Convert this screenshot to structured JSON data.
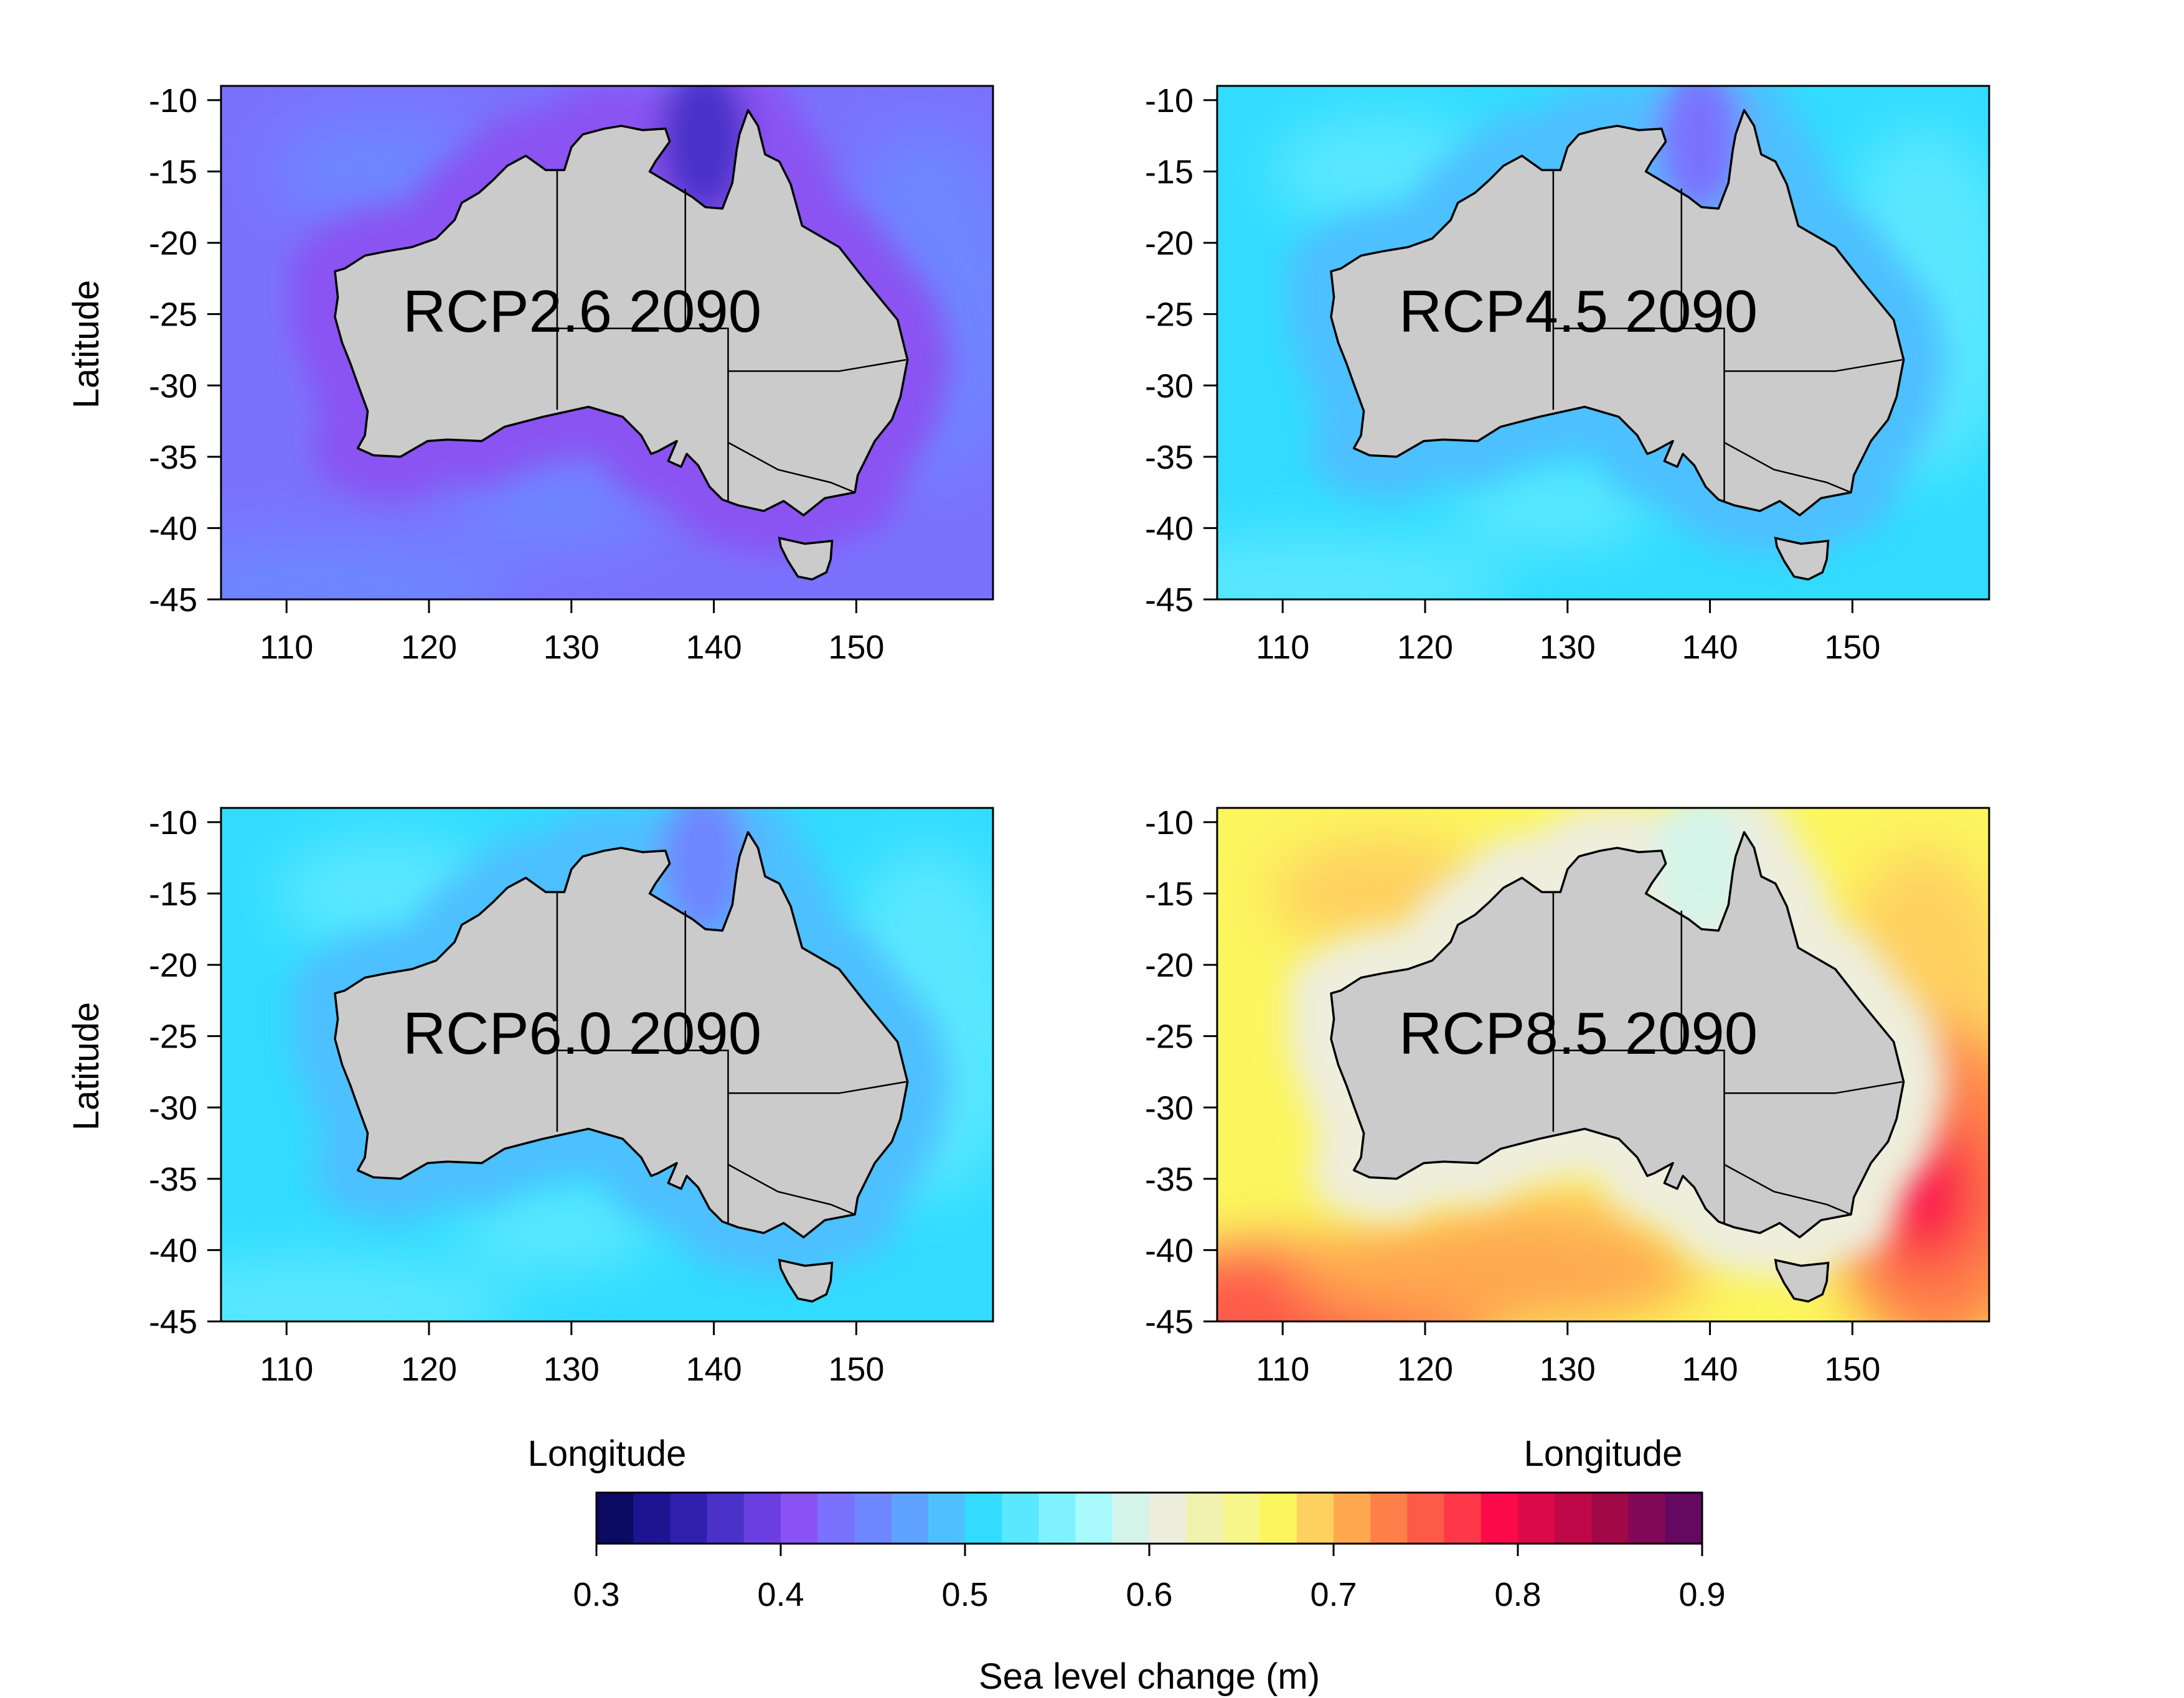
{
  "figure": {
    "colorbar": {
      "label": "Sea level change (m)",
      "min": 0.3,
      "max": 0.9,
      "tick_labels": [
        "0.3",
        "0.4",
        "0.5",
        "0.6",
        "0.7",
        "0.8",
        "0.9"
      ],
      "colors": [
        "#0a0a62",
        "#1c1490",
        "#3020b0",
        "#4a32c8",
        "#6a3ee0",
        "#8a52f2",
        "#7a72ff",
        "#6e86ff",
        "#60a2ff",
        "#4ec0ff",
        "#32dcff",
        "#5ae8ff",
        "#80f2ff",
        "#a8fafc",
        "#d4f4ea",
        "#eeeedc",
        "#f2f2b0",
        "#f6f68a",
        "#fcf65e",
        "#fed060",
        "#fea850",
        "#fe8048",
        "#fe5a48",
        "#fe3848",
        "#fa0a48",
        "#dc0a48",
        "#be0848",
        "#a00848",
        "#820858",
        "#640860"
      ]
    },
    "x_axis_label": "Longitude",
    "y_axis_label": "Latitude",
    "x_ticks": [
      "110",
      "120",
      "130",
      "140",
      "150"
    ],
    "y_ticks": [
      "-10",
      "-15",
      "-20",
      "-25",
      "-30",
      "-35",
      "-40",
      "-45"
    ],
    "land_color": "#cbcbcb",
    "panels": [
      {
        "title": "RCP2.6 2090",
        "mean_value": 0.42,
        "ocean_base_color": "#7a72ff",
        "coastal_band_color": "#8a52f2",
        "gulf_color": "#4a32c8",
        "open_ocean_color": "#6e86ff"
      },
      {
        "title": "RCP4.5 2090",
        "mean_value": 0.51,
        "ocean_base_color": "#32dcff",
        "coastal_band_color": "#4ec0ff",
        "gulf_color": "#7a72ff",
        "open_ocean_color": "#5ae8ff"
      },
      {
        "title": "RCP6.0 2090",
        "mean_value": 0.52,
        "ocean_base_color": "#32dcff",
        "coastal_band_color": "#4ec0ff",
        "gulf_color": "#6e86ff",
        "open_ocean_color": "#5ae8ff"
      },
      {
        "title": "RCP8.5 2090",
        "mean_value": 0.7,
        "ocean_base_color": "#fcf65e",
        "coastal_band_color": "#eeeedc",
        "gulf_color": "#d4f4ea",
        "open_ocean_color": "#fed060"
      }
    ]
  }
}
